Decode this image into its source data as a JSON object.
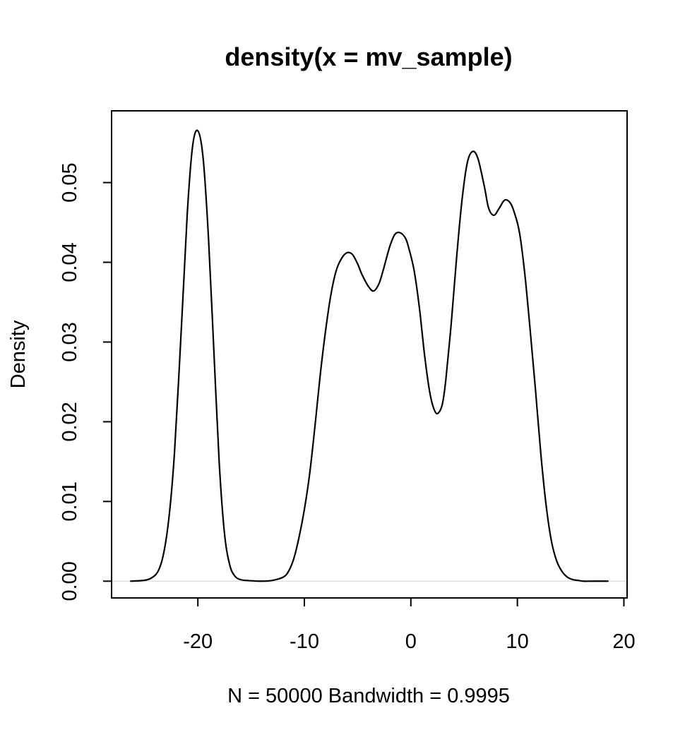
{
  "chart_data": {
    "type": "line",
    "title": "density(x = mv_sample)",
    "xlabel": "N = 50000   Bandwidth = 0.9995",
    "ylabel": "Density",
    "xlim": [
      -28.1,
      20.3
    ],
    "ylim": [
      -0.0021,
      0.059
    ],
    "x_ticks": [
      -20,
      -10,
      0,
      10,
      20
    ],
    "x_tick_labels": [
      "-20",
      "-10",
      "0",
      "10",
      "20"
    ],
    "y_ticks": [
      0.0,
      0.01,
      0.02,
      0.03,
      0.04,
      0.05
    ],
    "y_tick_labels": [
      "0.00",
      "0.01",
      "0.02",
      "0.03",
      "0.04",
      "0.05"
    ],
    "grid": false,
    "zero_line": true,
    "series": [
      {
        "line_color": "#000000",
        "x": [
          -26.3,
          -24.5,
          -23.5,
          -22.8,
          -22.2,
          -21.5,
          -21.0,
          -20.5,
          -20.0,
          -19.5,
          -19.0,
          -18.5,
          -18.0,
          -17.5,
          -17.0,
          -16.5,
          -16.0,
          -15.5,
          -14.0,
          -13.0,
          -12.0,
          -11.5,
          -11.0,
          -10.5,
          -10.0,
          -9.5,
          -9.0,
          -8.5,
          -8.0,
          -7.5,
          -7.0,
          -6.5,
          -6.0,
          -5.5,
          -5.0,
          -4.6,
          -4.0,
          -3.5,
          -3.0,
          -2.6,
          -2.0,
          -1.5,
          -1.0,
          -0.5,
          -0.2,
          0.3,
          0.8,
          1.3,
          1.8,
          2.3,
          2.7,
          3.0,
          3.3,
          3.8,
          4.3,
          4.8,
          5.3,
          5.8,
          6.3,
          6.9,
          7.3,
          7.8,
          8.3,
          8.8,
          9.3,
          9.7,
          10.2,
          10.7,
          11.2,
          11.7,
          12.2,
          12.7,
          13.2,
          13.7,
          14.2,
          14.7,
          15.2,
          15.7,
          16.2,
          17.0,
          18.5
        ],
        "y": [
          0.0,
          0.0003,
          0.002,
          0.007,
          0.016,
          0.033,
          0.046,
          0.0545,
          0.0565,
          0.053,
          0.043,
          0.029,
          0.015,
          0.006,
          0.002,
          0.0006,
          0.0002,
          0.0001,
          0.0,
          0.0001,
          0.0005,
          0.0012,
          0.0028,
          0.0055,
          0.009,
          0.0135,
          0.0195,
          0.026,
          0.0315,
          0.036,
          0.039,
          0.0405,
          0.0412,
          0.041,
          0.0398,
          0.0385,
          0.037,
          0.0364,
          0.0373,
          0.039,
          0.0419,
          0.0435,
          0.0437,
          0.043,
          0.0418,
          0.039,
          0.0343,
          0.0282,
          0.0235,
          0.0212,
          0.0213,
          0.0225,
          0.0255,
          0.0325,
          0.0407,
          0.0478,
          0.0525,
          0.0539,
          0.053,
          0.0495,
          0.0468,
          0.0459,
          0.0468,
          0.0478,
          0.0475,
          0.0463,
          0.0437,
          0.0385,
          0.0315,
          0.024,
          0.016,
          0.0095,
          0.005,
          0.0025,
          0.0012,
          0.0005,
          0.0002,
          0.0001,
          0.0,
          0.0,
          0.0
        ]
      }
    ]
  }
}
